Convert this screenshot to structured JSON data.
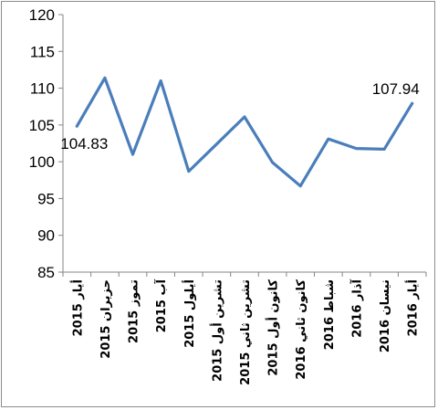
{
  "chart_data": {
    "type": "line",
    "title": "",
    "xlabel": "",
    "ylabel": "",
    "ylim": [
      85,
      120
    ],
    "yticks": [
      "85",
      "90",
      "95",
      "100",
      "105",
      "110",
      "115",
      "120"
    ],
    "grid": false,
    "categories": [
      "أيار 2015",
      "حزيران 2015",
      "تموز 2015",
      "آب 2015",
      "أيلول 2015",
      "تشرين أول 2015",
      "تشرين ثاني 2015",
      "كانون أول 2015",
      "كانون ثاني 2016",
      "شباط 2016",
      "آذار 2016",
      "نيسان 2016",
      "أيار 2016"
    ],
    "series": [
      {
        "values": [
          104.83,
          111.4,
          101.0,
          111.0,
          98.7,
          102.4,
          106.1,
          99.9,
          96.7,
          103.1,
          101.8,
          101.7,
          107.94
        ],
        "color": "#4a7ebb"
      }
    ],
    "data_labels": [
      {
        "index": 0,
        "text": "104.83"
      },
      {
        "index": 12,
        "text": "107.94"
      }
    ]
  }
}
